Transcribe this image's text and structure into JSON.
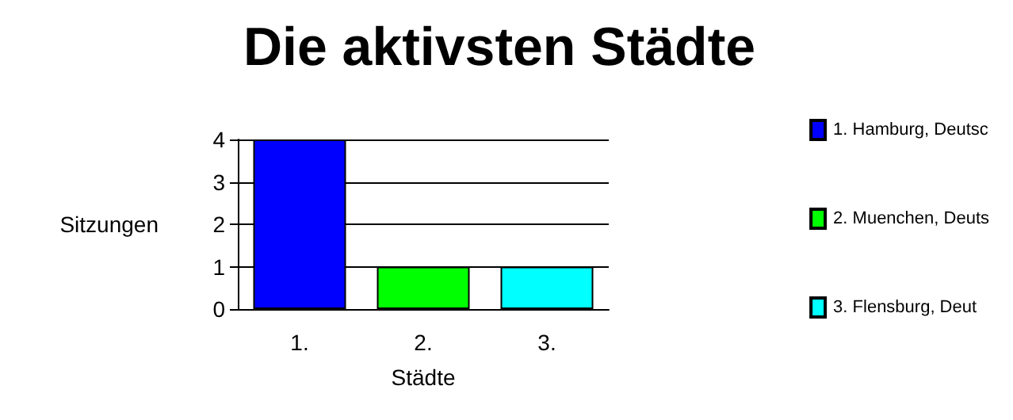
{
  "chart_data": {
    "type": "bar",
    "title": "Die aktivsten Städte",
    "xlabel": "Städte",
    "ylabel": "Sitzungen",
    "categories": [
      "1.",
      "2.",
      "3."
    ],
    "series": [
      {
        "name": "1. Hamburg, Deutsc",
        "color": "#0000ff",
        "values": [
          4,
          null,
          null
        ]
      },
      {
        "name": "2. Muenchen, Deuts",
        "color": "#00ff00",
        "values": [
          null,
          1,
          null
        ]
      },
      {
        "name": "3. Flensburg, Deut",
        "color": "#00ffff",
        "values": [
          null,
          null,
          1
        ]
      }
    ],
    "ylim": [
      0,
      4
    ],
    "yticks": [
      0,
      1,
      2,
      3,
      4
    ],
    "grid": "y",
    "legend": "right"
  }
}
